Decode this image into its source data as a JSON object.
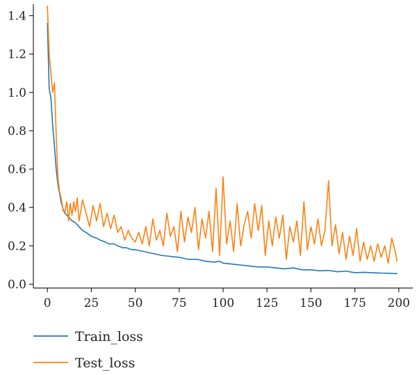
{
  "chart_data": {
    "type": "line",
    "title": "",
    "xlabel": "",
    "ylabel": "",
    "xlim": [
      -8,
      208
    ],
    "ylim": [
      -0.02,
      1.46
    ],
    "x_ticks": [
      0,
      25,
      50,
      75,
      100,
      125,
      150,
      175,
      200
    ],
    "y_ticks": [
      0.0,
      0.2,
      0.4,
      0.6,
      0.8,
      1.0,
      1.2,
      1.4
    ],
    "x_tick_labels": [
      "0",
      "25",
      "50",
      "75",
      "100",
      "125",
      "150",
      "175",
      "200"
    ],
    "y_tick_labels": [
      "0.0",
      "0.2",
      "0.4",
      "0.6",
      "0.8",
      "1.0",
      "1.2",
      "1.4"
    ],
    "grid": false,
    "legend_position": "bottom-left",
    "series": [
      {
        "name": "Train_loss",
        "color": "#1f77b4",
        "x": [
          0,
          1,
          2,
          3,
          4,
          5,
          6,
          7,
          8,
          9,
          10,
          12,
          14,
          16,
          18,
          20,
          22,
          25,
          28,
          30,
          33,
          35,
          38,
          40,
          43,
          45,
          48,
          50,
          55,
          60,
          65,
          70,
          75,
          80,
          85,
          90,
          95,
          98,
          100,
          105,
          110,
          115,
          120,
          125,
          130,
          135,
          140,
          145,
          150,
          155,
          160,
          165,
          170,
          175,
          180,
          185,
          190,
          195,
          199
        ],
        "y": [
          1.36,
          1.02,
          0.97,
          0.83,
          0.72,
          0.6,
          0.52,
          0.47,
          0.42,
          0.39,
          0.37,
          0.35,
          0.33,
          0.32,
          0.3,
          0.28,
          0.27,
          0.25,
          0.24,
          0.23,
          0.22,
          0.21,
          0.21,
          0.2,
          0.19,
          0.19,
          0.18,
          0.18,
          0.17,
          0.16,
          0.15,
          0.145,
          0.14,
          0.13,
          0.13,
          0.12,
          0.115,
          0.12,
          0.11,
          0.105,
          0.1,
          0.095,
          0.09,
          0.09,
          0.085,
          0.08,
          0.085,
          0.075,
          0.075,
          0.07,
          0.072,
          0.065,
          0.068,
          0.06,
          0.062,
          0.06,
          0.058,
          0.057,
          0.055
        ]
      },
      {
        "name": "Test_loss",
        "color": "#ff7f0e",
        "x": [
          0,
          1,
          2,
          3,
          4,
          5,
          6,
          7,
          8,
          9,
          10,
          11,
          12,
          13,
          14,
          15,
          16,
          17,
          18,
          19,
          20,
          22,
          24,
          26,
          28,
          30,
          32,
          34,
          36,
          38,
          40,
          42,
          44,
          46,
          48,
          50,
          52,
          54,
          56,
          58,
          60,
          62,
          64,
          66,
          68,
          70,
          72,
          74,
          76,
          78,
          80,
          82,
          84,
          86,
          88,
          90,
          92,
          94,
          96,
          98,
          100,
          102,
          104,
          106,
          108,
          110,
          112,
          114,
          116,
          118,
          120,
          122,
          124,
          126,
          128,
          130,
          132,
          134,
          136,
          138,
          140,
          142,
          144,
          146,
          148,
          150,
          152,
          154,
          156,
          158,
          160,
          162,
          164,
          166,
          168,
          170,
          172,
          174,
          176,
          178,
          180,
          182,
          184,
          186,
          188,
          190,
          192,
          194,
          196,
          198,
          199
        ],
        "y": [
          1.45,
          1.2,
          1.1,
          1.0,
          1.05,
          0.78,
          0.55,
          0.48,
          0.44,
          0.38,
          0.38,
          0.43,
          0.33,
          0.42,
          0.36,
          0.43,
          0.38,
          0.45,
          0.33,
          0.38,
          0.44,
          0.37,
          0.3,
          0.41,
          0.33,
          0.42,
          0.3,
          0.37,
          0.29,
          0.36,
          0.27,
          0.3,
          0.23,
          0.28,
          0.24,
          0.22,
          0.27,
          0.21,
          0.3,
          0.2,
          0.34,
          0.23,
          0.28,
          0.2,
          0.37,
          0.25,
          0.3,
          0.17,
          0.38,
          0.22,
          0.35,
          0.27,
          0.4,
          0.18,
          0.34,
          0.24,
          0.38,
          0.17,
          0.5,
          0.15,
          0.56,
          0.21,
          0.33,
          0.17,
          0.42,
          0.2,
          0.31,
          0.38,
          0.24,
          0.42,
          0.28,
          0.41,
          0.15,
          0.33,
          0.2,
          0.35,
          0.24,
          0.36,
          0.13,
          0.3,
          0.22,
          0.33,
          0.15,
          0.43,
          0.18,
          0.3,
          0.21,
          0.34,
          0.2,
          0.28,
          0.54,
          0.2,
          0.31,
          0.16,
          0.27,
          0.13,
          0.25,
          0.15,
          0.29,
          0.12,
          0.22,
          0.13,
          0.2,
          0.12,
          0.21,
          0.14,
          0.2,
          0.11,
          0.24,
          0.17,
          0.12
        ]
      }
    ]
  }
}
